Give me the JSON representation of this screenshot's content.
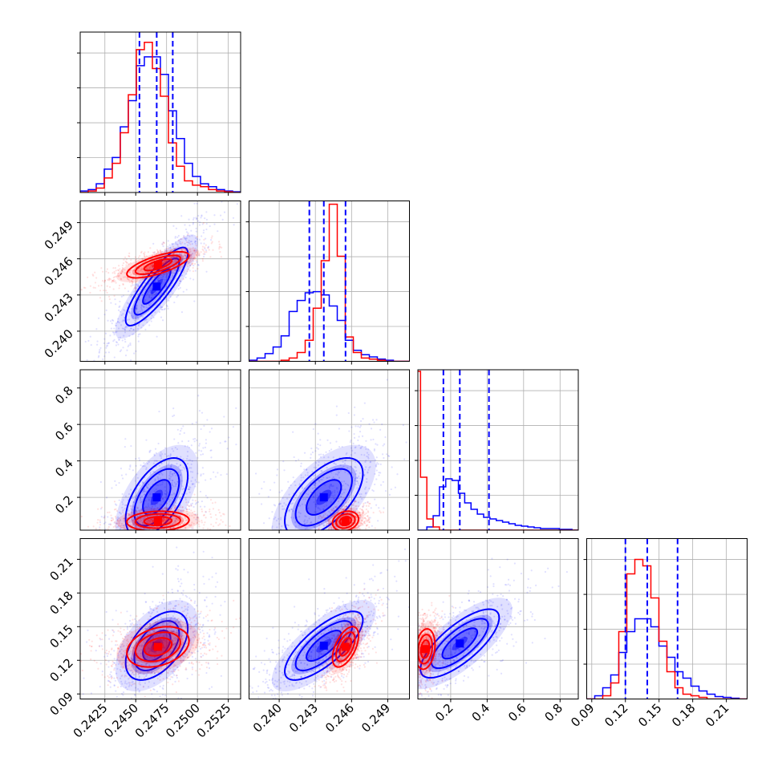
{
  "chart_data": {
    "type": "corner",
    "title": "",
    "parameters": [
      {
        "range": [
          0.2405,
          0.2535
        ],
        "ticks": [
          0.2425,
          0.245,
          0.2475,
          0.25,
          0.2525
        ],
        "tick_labels": [
          "0.2425",
          "0.2450",
          "0.2475",
          "0.2500",
          "0.2525"
        ],
        "quantiles": [
          0.2453,
          0.2467,
          0.248
        ],
        "hist_range": [
          0.2405,
          0.2535
        ],
        "hist_ymax": 1.1,
        "hist_series": [
          {
            "color": "#0000ff",
            "values": [
              0.01,
              0.02,
              0.06,
              0.16,
              0.24,
              0.45,
              0.63,
              0.87,
              0.93,
              0.93,
              0.81,
              0.56,
              0.37,
              0.2,
              0.11,
              0.06,
              0.04,
              0.02,
              0.01,
              0.005
            ]
          },
          {
            "color": "#ff0000",
            "values": [
              0.0,
              0.01,
              0.03,
              0.1,
              0.2,
              0.41,
              0.67,
              0.98,
              1.03,
              0.85,
              0.66,
              0.34,
              0.18,
              0.08,
              0.05,
              0.04,
              0.02,
              0.01,
              0.005,
              0.0
            ]
          }
        ]
      },
      {
        "range": [
          0.2375,
          0.2508
        ],
        "ticks": [
          0.24,
          0.243,
          0.246,
          0.249
        ],
        "tick_labels": [
          "0.240",
          "0.243",
          "0.246",
          "0.249"
        ],
        "quantiles": [
          0.2425,
          0.2437,
          0.2455
        ],
        "hist_range": [
          0.2375,
          0.2508
        ],
        "hist_ymax": 1.45,
        "hist_series": [
          {
            "color": "#0000ff",
            "values": [
              0.01,
              0.03,
              0.07,
              0.13,
              0.23,
              0.45,
              0.55,
              0.62,
              0.63,
              0.6,
              0.5,
              0.37,
              0.19,
              0.1,
              0.06,
              0.04,
              0.02,
              0.01,
              0.0,
              0.0
            ]
          },
          {
            "color": "#ff0000",
            "values": [
              0.0,
              0.0,
              0.0,
              0.0,
              0.01,
              0.03,
              0.08,
              0.19,
              0.48,
              0.91,
              1.42,
              0.95,
              0.22,
              0.08,
              0.03,
              0.02,
              0.01,
              0.0,
              0.0,
              0.0
            ]
          }
        ]
      },
      {
        "range": [
          0.02,
          0.9
        ],
        "ticks": [
          0.2,
          0.4,
          0.6,
          0.8
        ],
        "tick_labels": [
          "0.2",
          "0.4",
          "0.6",
          "0.8"
        ],
        "yticks": [
          0.2,
          0.4,
          0.6,
          0.8
        ],
        "quantiles": [
          0.16,
          0.25,
          0.41
        ],
        "hist_range": [
          0.0,
          0.9
        ],
        "hist_ymax": 1.0,
        "hist_series": [
          {
            "color": "#0000ff",
            "values": [
              0.0,
              0.0,
              0.02,
              0.09,
              0.27,
              0.32,
              0.31,
              0.23,
              0.17,
              0.13,
              0.1,
              0.08,
              0.07,
              0.06,
              0.05,
              0.04,
              0.03,
              0.025,
              0.02,
              0.015,
              0.01,
              0.01,
              0.01,
              0.005,
              0.005,
              0.0
            ]
          },
          {
            "color": "#ff0000",
            "values": [
              0.99,
              0.33,
              0.07,
              0.02,
              0.0,
              0.0,
              0.0,
              0.0,
              0.0,
              0.0,
              0.0,
              0.0,
              0.0,
              0.0,
              0.0,
              0.0,
              0.0,
              0.0,
              0.0,
              0.0,
              0.0,
              0.0,
              0.0,
              0.0,
              0.0,
              0.0
            ]
          }
        ]
      },
      {
        "range": [
          0.0855,
          0.2285
        ],
        "ticks": [
          0.09,
          0.12,
          0.15,
          0.18,
          0.21
        ],
        "tick_labels": [
          "0.09",
          "0.12",
          "0.15",
          "0.18",
          "0.21"
        ],
        "quantiles": [
          0.12,
          0.1395,
          0.1665
        ],
        "hist_range": [
          0.0855,
          0.2285
        ],
        "hist_ymax": 1.0,
        "hist_series": [
          {
            "color": "#0000ff",
            "values": [
              0.0,
              0.02,
              0.07,
              0.15,
              0.29,
              0.42,
              0.5,
              0.5,
              0.45,
              0.33,
              0.26,
              0.17,
              0.13,
              0.08,
              0.05,
              0.03,
              0.015,
              0.01,
              0.005,
              0.0
            ]
          },
          {
            "color": "#ff0000",
            "values": [
              0.0,
              0.0,
              0.02,
              0.1,
              0.42,
              0.78,
              0.87,
              0.83,
              0.63,
              0.36,
              0.17,
              0.07,
              0.03,
              0.02,
              0.01,
              0.0,
              0.0,
              0.0,
              0.0,
              0.0
            ]
          }
        ]
      }
    ],
    "pairs": [
      {
        "row": 1,
        "col": 0,
        "blue": {
          "mean": [
            0.2467,
            0.2437
          ],
          "std": [
            0.0014,
            0.0018
          ],
          "rho": 0.85
        },
        "red": {
          "mean": [
            0.2468,
            0.2455
          ],
          "std": [
            0.0014,
            0.0006
          ],
          "rho": 0.7
        }
      },
      {
        "row": 2,
        "col": 0,
        "blue": {
          "mean": [
            0.2467,
            0.2
          ],
          "std": [
            0.0014,
            0.12
          ],
          "rho": 0.55
        },
        "red": {
          "mean": [
            0.2468,
            0.07
          ],
          "std": [
            0.0014,
            0.03
          ],
          "rho": 0.1
        }
      },
      {
        "row": 2,
        "col": 1,
        "blue": {
          "mean": [
            0.2437,
            0.2
          ],
          "std": [
            0.0018,
            0.12
          ],
          "rho": 0.6
        },
        "red": {
          "mean": [
            0.2455,
            0.07
          ],
          "std": [
            0.0006,
            0.03
          ],
          "rho": 0.2
        }
      },
      {
        "row": 3,
        "col": 0,
        "blue": {
          "mean": [
            0.2467,
            0.133
          ],
          "std": [
            0.0014,
            0.017
          ],
          "rho": 0.5
        },
        "red": {
          "mean": [
            0.2468,
            0.132
          ],
          "std": [
            0.0014,
            0.01
          ],
          "rho": 0.3
        }
      },
      {
        "row": 3,
        "col": 1,
        "blue": {
          "mean": [
            0.2437,
            0.133
          ],
          "std": [
            0.0018,
            0.017
          ],
          "rho": 0.75
        },
        "red": {
          "mean": [
            0.2455,
            0.132
          ],
          "std": [
            0.0006,
            0.01
          ],
          "rho": 0.55
        }
      },
      {
        "row": 3,
        "col": 2,
        "blue": {
          "mean": [
            0.25,
            0.135
          ],
          "std": [
            0.12,
            0.017
          ],
          "rho": 0.75
        },
        "red": {
          "mean": [
            0.06,
            0.13
          ],
          "std": [
            0.03,
            0.01
          ],
          "rho": 0.2
        }
      }
    ],
    "contour_levels": [
      0.5,
      1.0,
      1.5
    ],
    "series": [
      {
        "color": "#0000ff"
      },
      {
        "color": "#ff0000"
      }
    ],
    "grid": true,
    "legend": "none"
  }
}
